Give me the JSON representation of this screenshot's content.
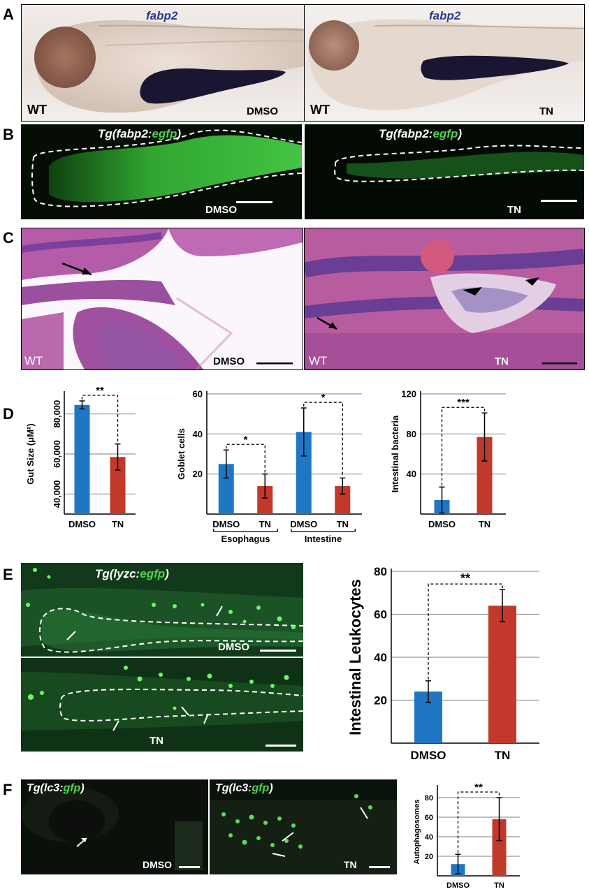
{
  "figure": {
    "panel_labels": [
      "A",
      "B",
      "C",
      "D",
      "E",
      "F"
    ]
  },
  "panelA": {
    "left": {
      "gene": "fabp2",
      "genotype": "WT",
      "treatment": "DMSO"
    },
    "right": {
      "gene": "fabp2",
      "genotype": "WT",
      "treatment": "TN"
    }
  },
  "panelB": {
    "left": {
      "transgene_prefix": "Tg(fabp2:",
      "transgene_gene": "egfp",
      "transgene_suffix": ")",
      "treatment": "DMSO"
    },
    "right": {
      "transgene_prefix": "Tg(fabp2:",
      "transgene_gene": "egfp",
      "transgene_suffix": ")",
      "treatment": "TN"
    }
  },
  "panelC": {
    "left": {
      "genotype": "WT",
      "treatment": "DMSO"
    },
    "right": {
      "genotype": "WT",
      "treatment": "TN"
    }
  },
  "panelE": {
    "transgene_prefix": "Tg(lyzc:",
    "transgene_gene": "egfp",
    "transgene_suffix": ")",
    "top_treatment": "DMSO",
    "bottom_treatment": "TN"
  },
  "panelF": {
    "left": {
      "transgene_prefix": "Tg(lc3:",
      "transgene_gene": "gfp",
      "transgene_suffix": ")",
      "treatment": "DMSO"
    },
    "right": {
      "transgene_prefix": "Tg(lc3:",
      "transgene_gene": "gfp",
      "transgene_suffix": ")",
      "treatment": "TN"
    }
  },
  "colors": {
    "dmso": "#1f77c4",
    "tn": "#c0392b",
    "gfp": "#4cd34c",
    "gene": "#2b3a8f"
  },
  "chart_data": [
    {
      "id": "gut-size",
      "type": "bar",
      "categories": [
        "DMSO",
        "TN"
      ],
      "values": [
        84500,
        58500
      ],
      "errors": [
        2000,
        6500
      ],
      "ylabel": "Gut Size (μM²)",
      "ylim": [
        30000,
        90000
      ],
      "ticks": [
        40000,
        60000,
        80000
      ],
      "tick_labels": [
        "40,000",
        "60,000",
        "80,000"
      ],
      "grid": true,
      "significance": "**"
    },
    {
      "id": "goblet-cells",
      "type": "bar",
      "categories": [
        "DMSO",
        "TN",
        "DMSO",
        "TN"
      ],
      "groups": [
        "Esophagus",
        "Intestine"
      ],
      "values": [
        25,
        14,
        41,
        14
      ],
      "errors": [
        7,
        6,
        12,
        4
      ],
      "ylabel": "Goblet cells",
      "ylim": [
        0,
        60
      ],
      "ticks": [
        20,
        40,
        60
      ],
      "tick_labels": [
        "20",
        "40",
        "60"
      ],
      "grid": true,
      "significance": [
        "*",
        "*"
      ]
    },
    {
      "id": "intestinal-bacteria",
      "type": "bar",
      "categories": [
        "DMSO",
        "TN"
      ],
      "values": [
        14,
        77
      ],
      "errors": [
        13,
        24
      ],
      "ylabel": "Intestinal bacteria",
      "ylim": [
        0,
        120
      ],
      "ticks": [
        40,
        80,
        120
      ],
      "tick_labels": [
        "40",
        "80",
        "120"
      ],
      "grid": true,
      "significance": "***"
    },
    {
      "id": "intestinal-leukocytes",
      "type": "bar",
      "categories": [
        "DMSO",
        "TN"
      ],
      "values": [
        24,
        64
      ],
      "errors": [
        5,
        7.5
      ],
      "ylabel": "Intestinal Leukocytes",
      "ylim": [
        0,
        80
      ],
      "ticks": [
        20,
        40,
        60,
        80
      ],
      "tick_labels": [
        "20",
        "40",
        "60",
        "80"
      ],
      "grid": true,
      "significance": "**"
    },
    {
      "id": "autophagosomes",
      "type": "bar",
      "categories": [
        "DMSO",
        "TN"
      ],
      "values": [
        12,
        58
      ],
      "errors": [
        10,
        22
      ],
      "ylabel": "Autophagosomes",
      "ylim": [
        0,
        90
      ],
      "ticks": [
        20,
        40,
        60,
        80
      ],
      "tick_labels": [
        "20",
        "40",
        "60",
        "80"
      ],
      "grid": true,
      "significance": "**"
    }
  ]
}
